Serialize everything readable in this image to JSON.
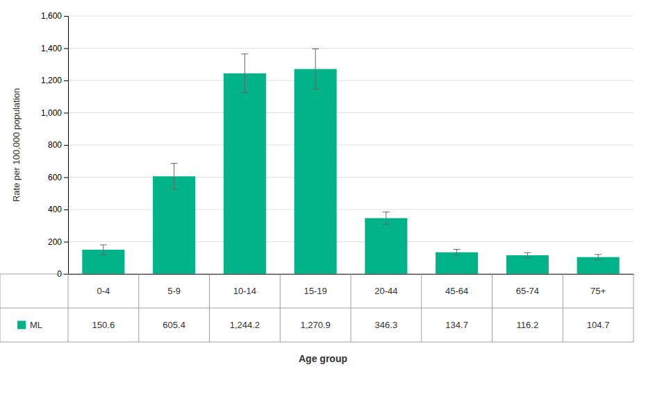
{
  "chart_data": {
    "type": "bar",
    "categories": [
      "0-4",
      "5-9",
      "10-14",
      "15-19",
      "20-44",
      "45-64",
      "65-74",
      "75+"
    ],
    "series": [
      {
        "name": "ML",
        "color": "#00b388",
        "values": [
          150.6,
          605.4,
          1244.2,
          1270.9,
          346.3,
          134.7,
          116.2,
          104.7
        ],
        "value_labels": [
          "150.6",
          "605.4",
          "1,244.2",
          "1,270.9",
          "346.3",
          "134.7",
          "116.2",
          "104.7"
        ],
        "errors_low": [
          30,
          80,
          120,
          125,
          38,
          18,
          16,
          16
        ],
        "errors_high": [
          30,
          80,
          120,
          125,
          38,
          18,
          16,
          16
        ]
      }
    ],
    "xlabel": "Age group",
    "ylabel": "Rate per 100,000 population",
    "ylim": [
      0,
      1600
    ],
    "yticks": [
      0,
      200,
      400,
      600,
      800,
      {
        "value": 1000,
        "label": "1,000"
      },
      {
        "value": 1200,
        "label": "1,200"
      },
      {
        "value": 1400,
        "label": "1,400"
      },
      {
        "value": 1600,
        "label": "1,600"
      }
    ],
    "grid": true
  }
}
